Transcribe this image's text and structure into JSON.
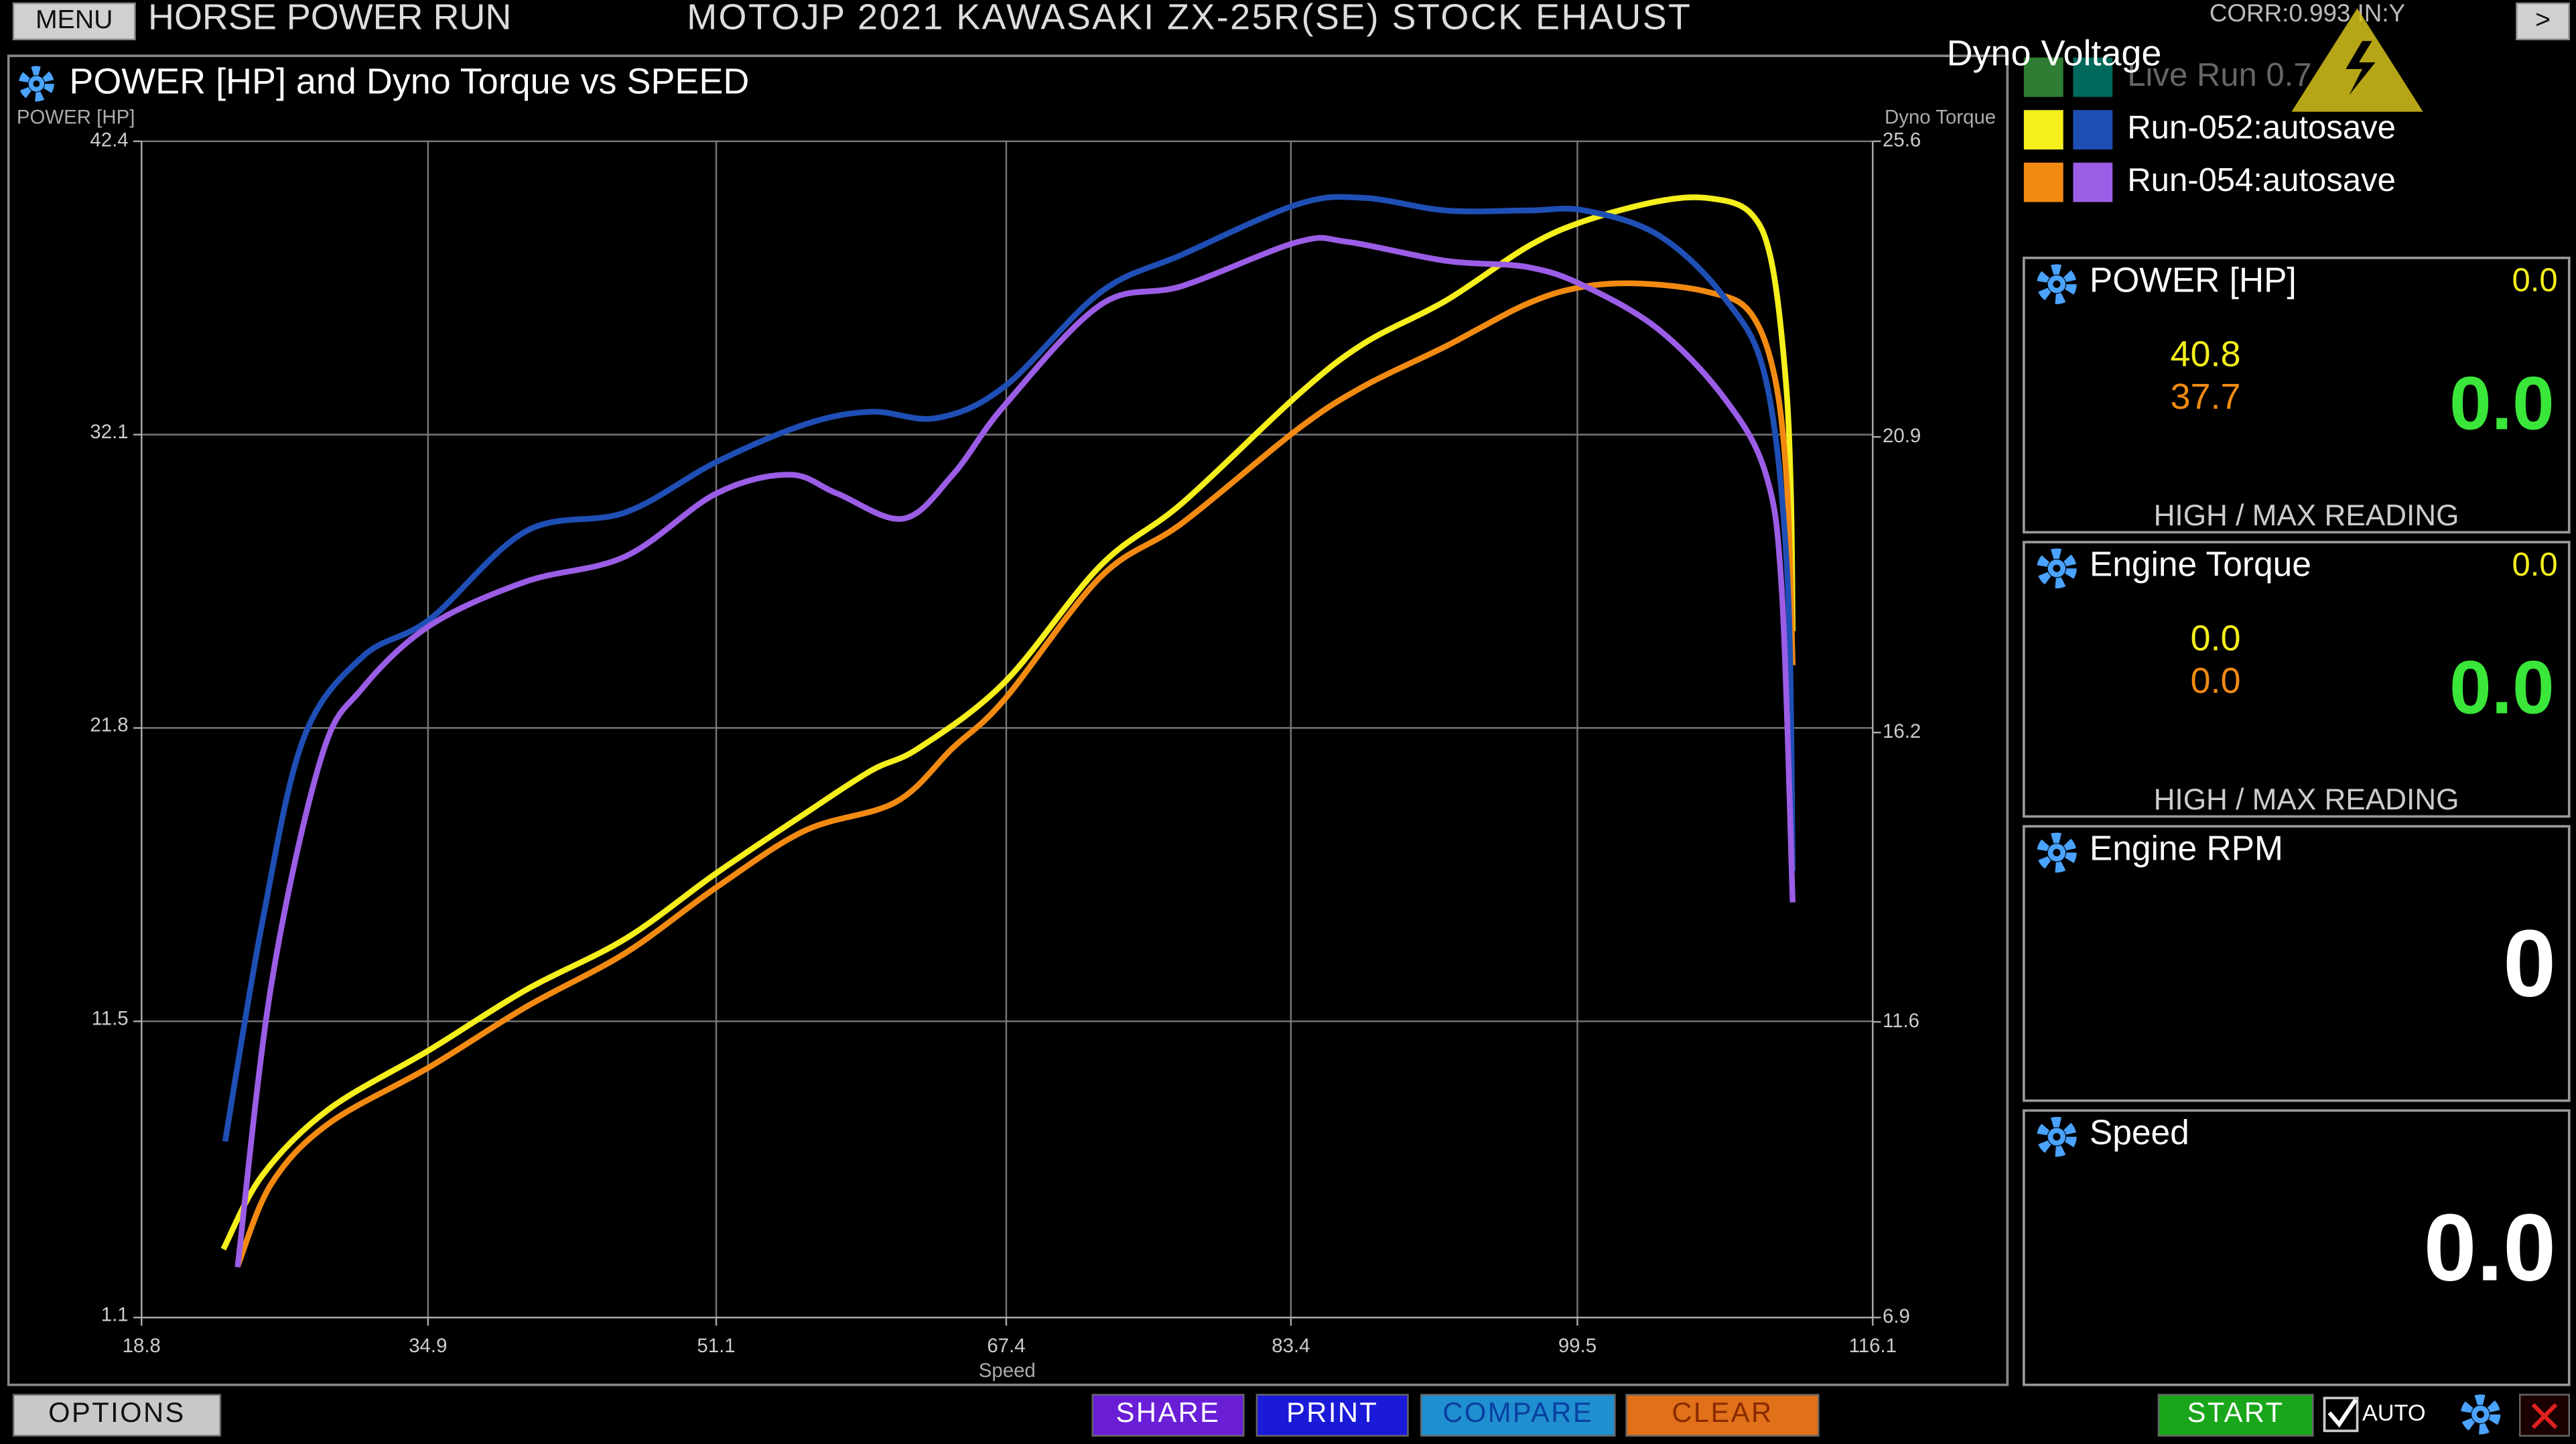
{
  "header": {
    "menu": "MENU",
    "mode": "HORSE POWER RUN",
    "title": "MOTOJP 2021 KAWASAKI ZX-25R(SE) STOCK EHAUST",
    "corr": "CORR:0.993 IN:Y",
    "next": ">",
    "voltage": "Dyno Voltage"
  },
  "legend": [
    {
      "name": "Live Run 0.7",
      "colors": [
        "#2e7d32",
        "#00695c"
      ]
    },
    {
      "name": "Run-052:autosave",
      "colors": [
        "#f5ef1c",
        "#1f4fb5"
      ]
    },
    {
      "name": "Run-054:autosave",
      "colors": [
        "#f28a12",
        "#9b5de5"
      ]
    }
  ],
  "chart_data": {
    "type": "line",
    "title": "POWER [HP] and Dyno Torque vs SPEED",
    "y_label": "POWER [HP]",
    "y2_label": "Dyno Torque",
    "x_label": "Speed",
    "xlim": [
      18.8,
      116.1
    ],
    "xticks": [
      18.8,
      34.9,
      51.1,
      67.4,
      83.4,
      99.5,
      116.1
    ],
    "ylim": [
      1.1,
      42.4
    ],
    "yticks": [
      1.1,
      11.5,
      21.8,
      32.1,
      42.4
    ],
    "y2lim": [
      6.9,
      25.6
    ],
    "y2ticks": [
      6.9,
      11.6,
      16.2,
      20.9,
      25.6
    ],
    "grid": true,
    "series": [
      {
        "run": 1,
        "axis": "y",
        "color": "#f5ef1c",
        "x": [
          23.4,
          25.6,
          29.3,
          35.0,
          40.4,
          46.0,
          51.1,
          56.1,
          59.8,
          62.5,
          67.3,
          72.7,
          77.3,
          83.8,
          87.5,
          92.1,
          96.7,
          99.9,
          104.1,
          106.9,
          109.2,
          110.4,
          111.2,
          111.5,
          111.6
        ],
        "values": [
          3.5,
          6.1,
          8.4,
          10.5,
          12.6,
          14.4,
          16.7,
          18.8,
          20.3,
          21.1,
          23.4,
          27.5,
          29.7,
          33.5,
          35.3,
          36.8,
          38.7,
          39.6,
          40.3,
          40.4,
          39.9,
          38.2,
          34.1,
          30.1,
          25.2
        ]
      },
      {
        "run": 2,
        "axis": "y",
        "color": "#f28a12",
        "x": [
          24.2,
          26.1,
          29.3,
          35.0,
          40.4,
          46.0,
          51.1,
          56.1,
          61.2,
          64.4,
          67.3,
          72.7,
          77.3,
          83.8,
          87.5,
          92.1,
          96.7,
          99.9,
          103.2,
          106.9,
          109.2,
          110.6,
          111.3,
          111.6
        ],
        "values": [
          2.9,
          5.8,
          7.9,
          9.9,
          12.0,
          13.9,
          16.2,
          18.2,
          19.2,
          21.1,
          22.8,
          27.1,
          29.0,
          32.3,
          33.8,
          35.2,
          36.7,
          37.3,
          37.4,
          37.1,
          36.4,
          34.1,
          30.1,
          24.0
        ]
      },
      {
        "run": 1,
        "axis": "y2",
        "color": "#1f4fb5",
        "x": [
          23.5,
          25.6,
          27.9,
          31.2,
          35.0,
          40.4,
          46.0,
          51.1,
          56.1,
          59.8,
          63.5,
          67.3,
          72.7,
          77.3,
          83.8,
          87.5,
          92.1,
          96.7,
          99.9,
          104.1,
          107.8,
          110.1,
          111.3,
          111.6
        ],
        "values": [
          9.7,
          13.2,
          16.1,
          17.4,
          18.0,
          19.4,
          19.7,
          20.5,
          21.1,
          21.3,
          21.2,
          21.7,
          23.2,
          23.8,
          24.6,
          24.7,
          24.5,
          24.5,
          24.5,
          24.1,
          23.1,
          21.8,
          18.7,
          14.0
        ]
      },
      {
        "run": 2,
        "axis": "y2",
        "color": "#9b5de5",
        "x": [
          24.2,
          26.1,
          28.9,
          31.2,
          35.0,
          40.4,
          46.0,
          51.1,
          55.2,
          57.9,
          61.6,
          64.4,
          67.3,
          72.7,
          77.3,
          83.8,
          86.6,
          92.1,
          96.7,
          99.9,
          104.1,
          107.8,
          110.1,
          111.0,
          111.6
        ],
        "values": [
          7.7,
          12.2,
          15.8,
          16.9,
          17.9,
          18.6,
          19.0,
          20.0,
          20.3,
          20.0,
          19.6,
          20.3,
          21.4,
          23.0,
          23.3,
          24.0,
          24.0,
          23.7,
          23.6,
          23.3,
          22.6,
          21.5,
          20.3,
          18.4,
          13.5
        ]
      }
    ]
  },
  "panels": [
    {
      "title": "POWER [HP]",
      "live": "0.0",
      "high": "40.8",
      "max": "37.7",
      "big": "0.0",
      "footer": "HIGH / MAX READING"
    },
    {
      "title": "Engine Torque",
      "live": "0.0",
      "high": "0.0",
      "max": "0.0",
      "big": "0.0",
      "footer": "HIGH / MAX READING"
    },
    {
      "title": "Engine RPM",
      "big": "0"
    },
    {
      "title": "Speed",
      "big": "0.0"
    }
  ],
  "buttons": [
    {
      "label": "OPTIONS",
      "color": "#c8c8c8",
      "text_color": "#111111"
    },
    {
      "label": "SHARE",
      "color": "#6a1fd6",
      "text_color": "#ffffff"
    },
    {
      "label": "PRINT",
      "color": "#1a1ad8",
      "text_color": "#ffffff"
    },
    {
      "label": "COMPARE",
      "color": "#1f8fd0",
      "text_color": "#0a3fa0"
    },
    {
      "label": "CLEAR",
      "color": "#e0701a",
      "text_color": "#8a2a00"
    },
    {
      "label": "START",
      "color": "#1aa61a",
      "text_color": "#ffffff"
    }
  ],
  "auto": "AUTO"
}
